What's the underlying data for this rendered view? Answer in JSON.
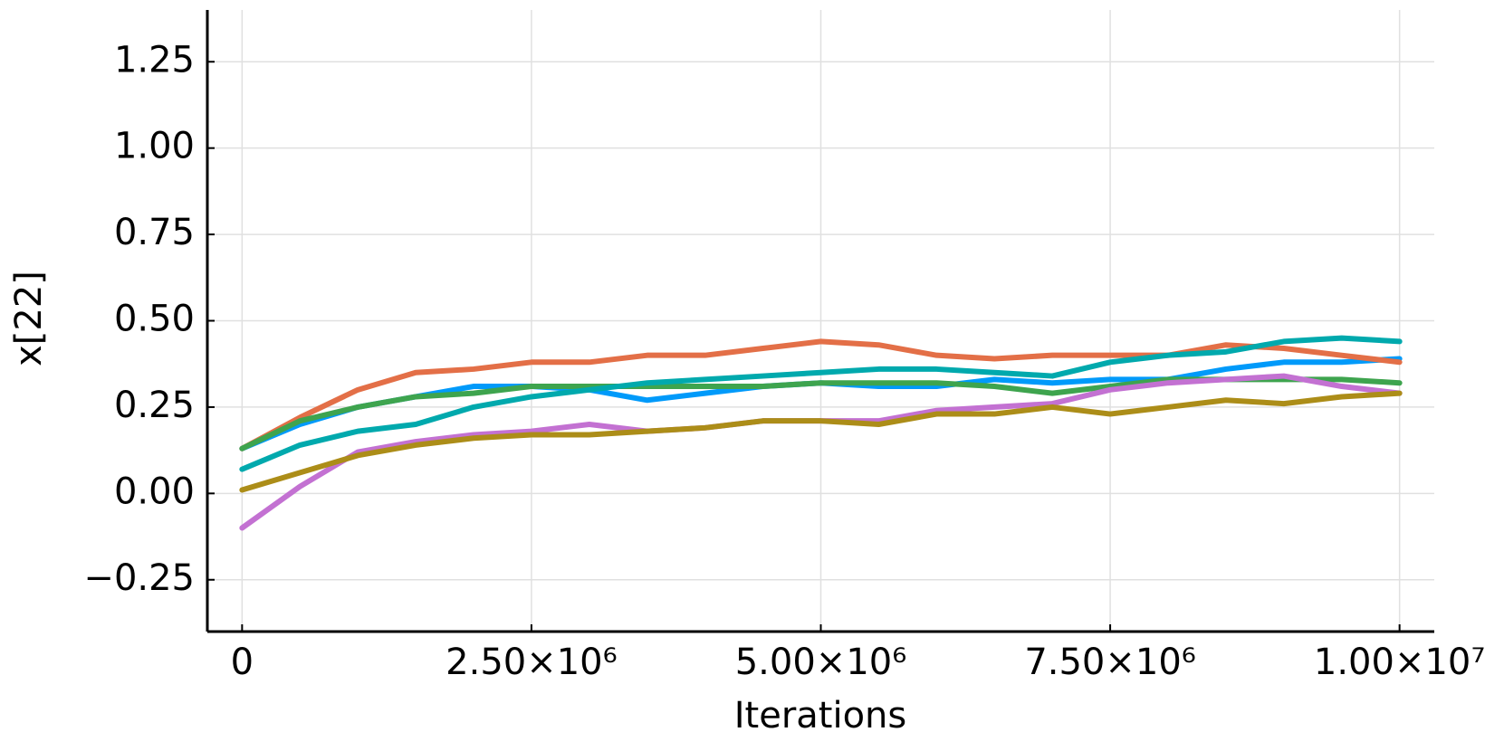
{
  "chart_data": {
    "type": "line",
    "x_label": "Iterations",
    "y_label": "x[22]",
    "x": [
      0,
      500000,
      1000000,
      1500000,
      2000000,
      2500000,
      3000000,
      3500000,
      4000000,
      4500000,
      5000000,
      5500000,
      6000000,
      6500000,
      7000000,
      7500000,
      8000000,
      8500000,
      9000000,
      9500000,
      10000000
    ],
    "series": [
      {
        "color": "#009AFA",
        "values": [
          0.13,
          0.2,
          0.25,
          0.28,
          0.31,
          0.31,
          0.3,
          0.27,
          0.29,
          0.31,
          0.32,
          0.31,
          0.31,
          0.33,
          0.32,
          0.33,
          0.33,
          0.36,
          0.38,
          0.38,
          0.39
        ]
      },
      {
        "color": "#E36F47",
        "values": [
          0.13,
          0.22,
          0.3,
          0.35,
          0.36,
          0.38,
          0.38,
          0.4,
          0.4,
          0.42,
          0.44,
          0.43,
          0.4,
          0.39,
          0.4,
          0.4,
          0.4,
          0.43,
          0.42,
          0.4,
          0.38
        ]
      },
      {
        "color": "#3EA44E",
        "values": [
          0.13,
          0.21,
          0.25,
          0.28,
          0.29,
          0.31,
          0.31,
          0.31,
          0.31,
          0.31,
          0.32,
          0.32,
          0.32,
          0.31,
          0.29,
          0.31,
          0.33,
          0.33,
          0.33,
          0.33,
          0.32
        ]
      },
      {
        "color": "#C371D2",
        "values": [
          -0.1,
          0.02,
          0.12,
          0.15,
          0.17,
          0.18,
          0.2,
          0.18,
          0.19,
          0.21,
          0.21,
          0.21,
          0.24,
          0.25,
          0.26,
          0.3,
          0.32,
          0.33,
          0.34,
          0.31,
          0.29
        ]
      },
      {
        "color": "#AC8D18",
        "values": [
          0.01,
          0.06,
          0.11,
          0.14,
          0.16,
          0.17,
          0.17,
          0.18,
          0.19,
          0.21,
          0.21,
          0.2,
          0.23,
          0.23,
          0.25,
          0.23,
          0.25,
          0.27,
          0.26,
          0.28,
          0.29
        ]
      },
      {
        "color": "#00A9AD",
        "values": [
          0.07,
          0.14,
          0.18,
          0.2,
          0.25,
          0.28,
          0.3,
          0.32,
          0.33,
          0.34,
          0.35,
          0.36,
          0.36,
          0.35,
          0.34,
          0.38,
          0.4,
          0.41,
          0.44,
          0.45,
          0.44
        ]
      }
    ],
    "xlim": [
      -300000,
      10300000
    ],
    "xticks": [
      0,
      {
        "value": 2500000,
        "label": "2.50×10⁶"
      },
      {
        "value": 5000000,
        "label": "5.00×10⁶"
      },
      {
        "value": 7500000,
        "label": "7.50×10⁶"
      },
      {
        "value": 10000000,
        "label": "1.00×10⁷"
      }
    ],
    "ylim": [
      -0.4,
      1.4
    ],
    "yticks": [
      {
        "value": -0.25,
        "label": "−0.25"
      },
      {
        "value": 0,
        "label": "0.00"
      },
      0.25,
      {
        "value": 0.5,
        "label": "0.50"
      },
      0.75,
      {
        "value": 1,
        "label": "1.00"
      },
      1.25
    ],
    "grid": true
  }
}
